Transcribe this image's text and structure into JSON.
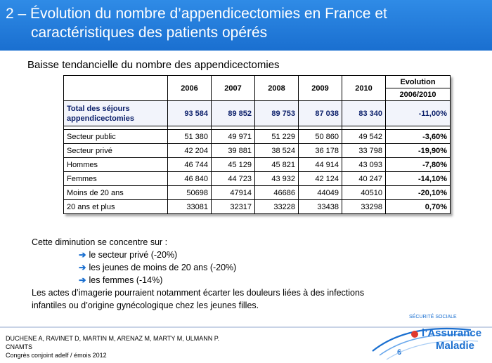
{
  "title": {
    "line1": "2 – Évolution du nombre d’appendicectomies en France et",
    "line2": "caractéristiques des patients opérés"
  },
  "subtitle": "Baisse tendancielle du nombre des appendicectomies",
  "table": {
    "years": [
      "2006",
      "2007",
      "2008",
      "2009",
      "2010"
    ],
    "evolution_header_1": "Evolution",
    "evolution_header_2": "2006/2010",
    "total": {
      "label_line1": "Total des séjours",
      "label_line2": "appendicectomies",
      "values": [
        "93 584",
        "89 852",
        "89 753",
        "87 038",
        "83 340"
      ],
      "evolution": "-11,00%"
    },
    "rows": [
      {
        "label": "Secteur public",
        "values": [
          "51 380",
          "49 971",
          "51 229",
          "50 860",
          "49 542"
        ],
        "evolution": "-3,60%"
      },
      {
        "label": "Secteur privé",
        "values": [
          "42 204",
          "39 881",
          "38 524",
          "36 178",
          "33 798"
        ],
        "evolution": "-19,90%"
      },
      {
        "label": "Hommes",
        "values": [
          "46 744",
          "45 129",
          "45 821",
          "44 914",
          "43 093"
        ],
        "evolution": "-7,80%"
      },
      {
        "label": "Femmes",
        "values": [
          "46 840",
          "44 723",
          "43 932",
          "42 124",
          "40 247"
        ],
        "evolution": "-14,10%"
      },
      {
        "label": "Moins de 20 ans",
        "values": [
          "50698",
          "47914",
          "46686",
          "44049",
          "40510"
        ],
        "evolution": "-20,10%"
      },
      {
        "label": "20 ans et plus",
        "values": [
          "33081",
          "32317",
          "33228",
          "33438",
          "33298"
        ],
        "evolution": "0,70%"
      }
    ]
  },
  "body": {
    "intro": "Cette diminution  se concentre sur :",
    "bullets": [
      "le secteur privé (-20%)",
      "les jeunes de moins de 20 ans (-20%)",
      "les femmes (-14%)"
    ],
    "para_line1": "Les actes d’imagerie pourraient notamment écarter les douleurs liées à des infections",
    "para_line2": "infantiles ou d’origine gynécologique  chez les jeunes filles."
  },
  "footer": {
    "line1": "DUCHENE  A, RAVINET D, MARTIN  M, ARENAZ M, MARTY M, ULMANN P.",
    "line2": "CNAMTS",
    "line3": "Congrès  conjoint adelf / émois 2012"
  },
  "page_number": "6",
  "logo": {
    "small": "SÉCURITÉ SOCIALE",
    "line1": "l’Assurance",
    "line2": "Maladie"
  },
  "colors": {
    "title_bg": "#1a6fd0",
    "accent": "#1a6fd0",
    "total_text": "#0b1f6a"
  }
}
